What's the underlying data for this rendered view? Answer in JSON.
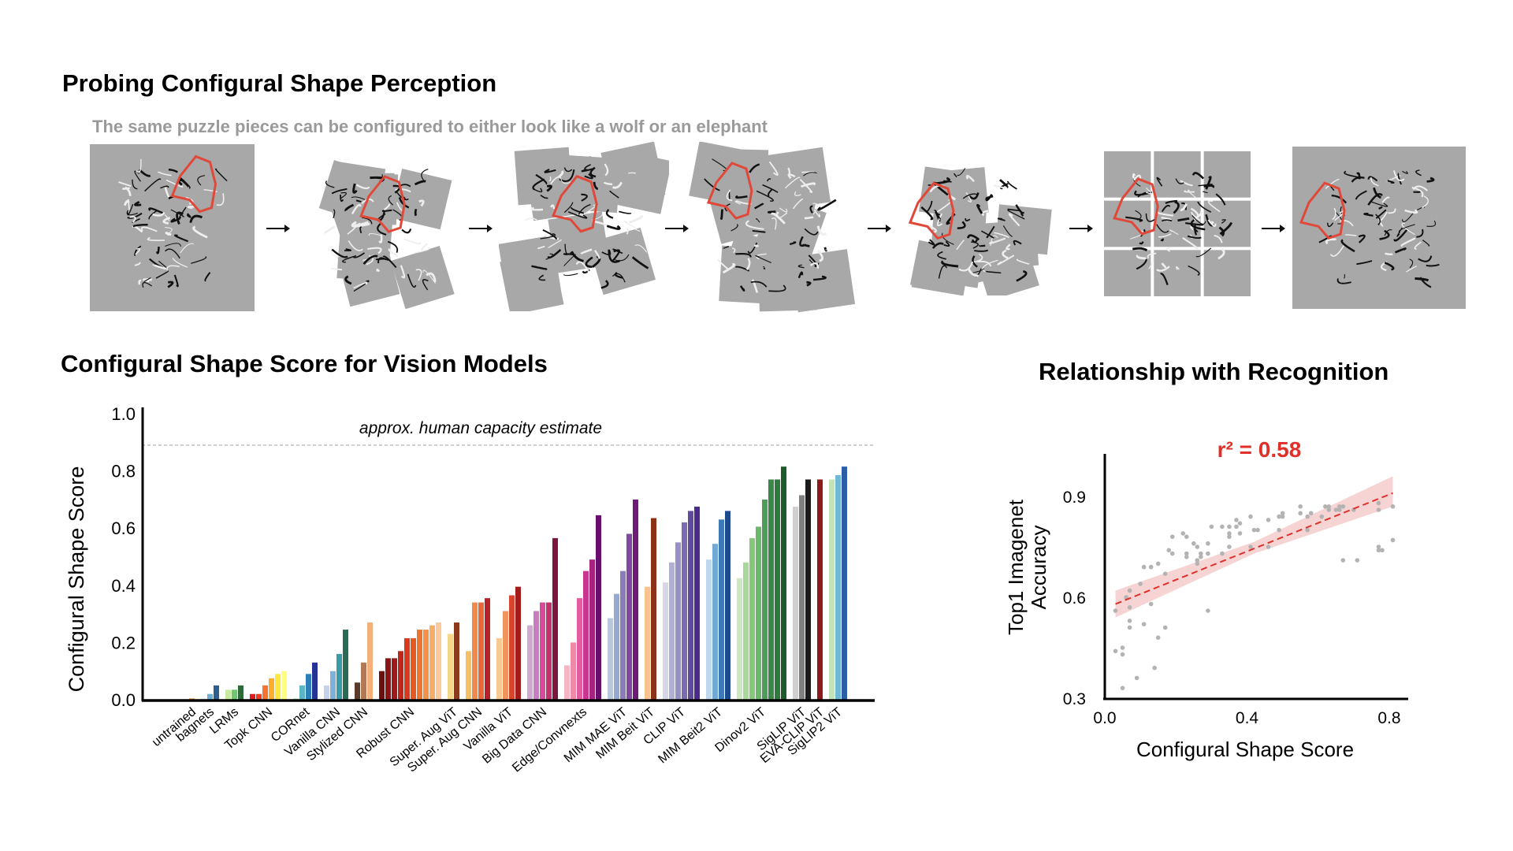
{
  "figure_top": {
    "title": "Probing Configural Shape Perception",
    "subtitle": "The same puzzle pieces can be configured to either look like a wolf or an elephant",
    "frames": [
      "wolf",
      "puzzle-1",
      "puzzle-2",
      "puzzle-3",
      "puzzle-4",
      "puzzle-5",
      "elephant"
    ],
    "highlight_color": "#e0483a"
  },
  "chart_data": [
    {
      "type": "bar",
      "title": "Configural Shape Score for Vision Models",
      "ylabel": "Configural Shape Score",
      "xlabel": "",
      "ylim": [
        0,
        1.0
      ],
      "yticks": [
        "0.0",
        "0.2",
        "0.4",
        "0.6",
        "0.8",
        "1.0"
      ],
      "reference_line": {
        "value": 0.89,
        "label": "approx. human capacity estimate"
      },
      "groups": [
        {
          "name": "untrained",
          "values": [
            0.005
          ],
          "colors": [
            "#f4a460"
          ]
        },
        {
          "name": "bagnets",
          "values": [
            0.005,
            0.02,
            0.05
          ],
          "colors": [
            "#deebf7",
            "#6baed6",
            "#2c5f8f"
          ]
        },
        {
          "name": "LRMs",
          "values": [
            0.035,
            0.035,
            0.05
          ],
          "colors": [
            "#c7e9a0",
            "#74c476",
            "#2e6b3a"
          ]
        },
        {
          "name": "Topk CNN",
          "values": [
            0.02,
            0.02,
            0.05,
            0.075,
            0.09,
            0.1
          ],
          "colors": [
            "#e31a1c",
            "#f03b20",
            "#f7742f",
            "#fdae2f",
            "#fee83f",
            "#ffff80"
          ]
        },
        {
          "name": "CORnet",
          "values": [
            0.005,
            0.05,
            0.09,
            0.13
          ],
          "colors": [
            "#c7e9c0",
            "#5bb5c4",
            "#2c7fb8",
            "#253494"
          ]
        },
        {
          "name": "Vanilla CNN",
          "values": [
            0.05,
            0.1,
            0.16,
            0.245
          ],
          "colors": [
            "#c6d2ea",
            "#7fb0d8",
            "#3a9aa8",
            "#2a6b55"
          ]
        },
        {
          "name": "Stylized CNN",
          "values": [
            0.06,
            0.13,
            0.27
          ],
          "colors": [
            "#5a3a2a",
            "#b07a58",
            "#f4b07a"
          ]
        },
        {
          "name": "Robust CNN",
          "values": [
            0.1,
            0.145,
            0.145,
            0.17,
            0.215,
            0.215,
            0.245,
            0.245,
            0.26,
            0.27
          ],
          "colors": [
            "#6b0f0f",
            "#8b1515",
            "#a0191a",
            "#c0261a",
            "#d83a1f",
            "#e55a22",
            "#ee7530",
            "#f39247",
            "#f7ad6a",
            "#fbc99a"
          ]
        },
        {
          "name": "Super. Aug ViT",
          "values": [
            0.23,
            0.27
          ],
          "colors": [
            "#f7d58a",
            "#8b3a1e"
          ]
        },
        {
          "name": "Super. Aug CNN",
          "values": [
            0.17,
            0.34,
            0.34,
            0.355
          ],
          "colors": [
            "#f9c063",
            "#f08a4b",
            "#e8683a",
            "#b8202a"
          ]
        },
        {
          "name": "Vanilla ViT",
          "values": [
            0.215,
            0.31,
            0.365,
            0.395
          ],
          "colors": [
            "#f9c994",
            "#f0935f",
            "#d7452f",
            "#a51c1c"
          ]
        },
        {
          "name": "Big Data CNN",
          "values": [
            0.26,
            0.31,
            0.34,
            0.34,
            0.565
          ],
          "colors": [
            "#d0a9d0",
            "#c97cc0",
            "#d84b9a",
            "#c2336e",
            "#7a1640"
          ]
        },
        {
          "name": "Edge/Convnexts",
          "values": [
            0.12,
            0.2,
            0.355,
            0.45,
            0.49,
            0.645
          ],
          "colors": [
            "#f4b6c2",
            "#ee8aa8",
            "#e35ca0",
            "#c93690",
            "#a82380",
            "#6a0e6e"
          ]
        },
        {
          "name": "MIM MAE ViT",
          "values": [
            0.285,
            0.37,
            0.45,
            0.58,
            0.7
          ],
          "colors": [
            "#b5c8e0",
            "#96a9d1",
            "#8a7cb8",
            "#8248a0",
            "#6e1a78"
          ]
        },
        {
          "name": "MIM Beit ViT",
          "values": [
            0.395,
            0.635
          ],
          "colors": [
            "#f9c38f",
            "#8b3218"
          ]
        },
        {
          "name": "CLIP ViT",
          "values": [
            0.41,
            0.48,
            0.55,
            0.62,
            0.66,
            0.675
          ],
          "colors": [
            "#d7d7e8",
            "#b0b0d4",
            "#9690c4",
            "#7b6bb0",
            "#5f4a9c",
            "#4a2a8a"
          ]
        },
        {
          "name": "MIM Beit2 ViT",
          "values": [
            0.49,
            0.545,
            0.63,
            0.66
          ],
          "colors": [
            "#c0d8ee",
            "#72a8d4",
            "#3f7ab8",
            "#1e4a8e"
          ]
        },
        {
          "name": "Dinov2 ViT",
          "values": [
            0.425,
            0.48,
            0.565,
            0.605,
            0.7,
            0.77,
            0.77,
            0.815
          ],
          "colors": [
            "#cbe8c0",
            "#a8d89a",
            "#86c87a",
            "#6ab86a",
            "#4d9e58",
            "#3a8848",
            "#2f7a3e",
            "#1f5a2a"
          ]
        },
        {
          "name": "SigLIP ViT",
          "values": [
            0.675,
            0.715,
            0.77
          ],
          "colors": [
            "#d0d0d0",
            "#808080",
            "#1a1a1a"
          ]
        },
        {
          "name": "EVA-CLIP ViT",
          "values": [
            0.77
          ],
          "colors": [
            "#8b1a1a"
          ]
        },
        {
          "name": "SigLIP2 ViT",
          "values": [
            0.77,
            0.785,
            0.815
          ],
          "colors": [
            "#c4e4b8",
            "#6fb8d6",
            "#2a5ea6"
          ]
        }
      ]
    },
    {
      "type": "scatter",
      "title": "Relationship with Recognition",
      "xlabel": "Configural Shape Score",
      "ylabel": [
        "Top1 Imagenet",
        "Accuracy"
      ],
      "xlim": [
        0.0,
        0.8
      ],
      "ylim": [
        0.3,
        0.9
      ],
      "xticks": [
        "0.0",
        "0.4",
        "0.8"
      ],
      "yticks": [
        "0.3",
        "0.6",
        "0.9"
      ],
      "annotation": "r² = 0.58",
      "point_color": "#b3b3b3",
      "fit_color": "#e0302a",
      "band_color": "#f6cccc",
      "fit": {
        "x": [
          0.03,
          0.81
        ],
        "y": [
          0.58,
          0.91
        ]
      },
      "ci": {
        "x": [
          0.03,
          0.42,
          0.81
        ],
        "lower": [
          0.54,
          0.73,
          0.87
        ],
        "upper": [
          0.62,
          0.765,
          0.96
        ]
      },
      "points": [
        [
          0.03,
          0.56
        ],
        [
          0.03,
          0.44
        ],
        [
          0.05,
          0.45
        ],
        [
          0.05,
          0.43
        ],
        [
          0.05,
          0.33
        ],
        [
          0.06,
          0.6
        ],
        [
          0.07,
          0.62
        ],
        [
          0.07,
          0.57
        ],
        [
          0.07,
          0.53
        ],
        [
          0.07,
          0.51
        ],
        [
          0.09,
          0.36
        ],
        [
          0.1,
          0.64
        ],
        [
          0.11,
          0.69
        ],
        [
          0.11,
          0.52
        ],
        [
          0.13,
          0.69
        ],
        [
          0.13,
          0.58
        ],
        [
          0.14,
          0.39
        ],
        [
          0.15,
          0.7
        ],
        [
          0.15,
          0.48
        ],
        [
          0.17,
          0.67
        ],
        [
          0.17,
          0.51
        ],
        [
          0.18,
          0.74
        ],
        [
          0.19,
          0.78
        ],
        [
          0.19,
          0.73
        ],
        [
          0.22,
          0.79
        ],
        [
          0.23,
          0.78
        ],
        [
          0.23,
          0.73
        ],
        [
          0.23,
          0.72
        ],
        [
          0.25,
          0.76
        ],
        [
          0.26,
          0.75
        ],
        [
          0.26,
          0.71
        ],
        [
          0.26,
          0.7
        ],
        [
          0.27,
          0.73
        ],
        [
          0.27,
          0.72
        ],
        [
          0.29,
          0.76
        ],
        [
          0.29,
          0.73
        ],
        [
          0.29,
          0.56
        ],
        [
          0.3,
          0.81
        ],
        [
          0.33,
          0.81
        ],
        [
          0.33,
          0.73
        ],
        [
          0.35,
          0.81
        ],
        [
          0.35,
          0.79
        ],
        [
          0.35,
          0.78
        ],
        [
          0.35,
          0.75
        ],
        [
          0.37,
          0.83
        ],
        [
          0.37,
          0.81
        ],
        [
          0.38,
          0.82
        ],
        [
          0.38,
          0.79
        ],
        [
          0.41,
          0.84
        ],
        [
          0.41,
          0.75
        ],
        [
          0.42,
          0.8
        ],
        [
          0.43,
          0.8
        ],
        [
          0.46,
          0.83
        ],
        [
          0.46,
          0.75
        ],
        [
          0.49,
          0.84
        ],
        [
          0.49,
          0.8
        ],
        [
          0.5,
          0.85
        ],
        [
          0.5,
          0.84
        ],
        [
          0.55,
          0.87
        ],
        [
          0.55,
          0.85
        ],
        [
          0.57,
          0.84
        ],
        [
          0.57,
          0.8
        ],
        [
          0.58,
          0.85
        ],
        [
          0.61,
          0.84
        ],
        [
          0.62,
          0.87
        ],
        [
          0.63,
          0.87
        ],
        [
          0.63,
          0.86
        ],
        [
          0.65,
          0.86
        ],
        [
          0.66,
          0.87
        ],
        [
          0.66,
          0.86
        ],
        [
          0.67,
          0.87
        ],
        [
          0.67,
          0.71
        ],
        [
          0.7,
          0.86
        ],
        [
          0.71,
          0.71
        ],
        [
          0.77,
          0.88
        ],
        [
          0.77,
          0.86
        ],
        [
          0.77,
          0.75
        ],
        [
          0.77,
          0.74
        ],
        [
          0.78,
          0.74
        ],
        [
          0.81,
          0.87
        ],
        [
          0.81,
          0.77
        ]
      ]
    }
  ]
}
